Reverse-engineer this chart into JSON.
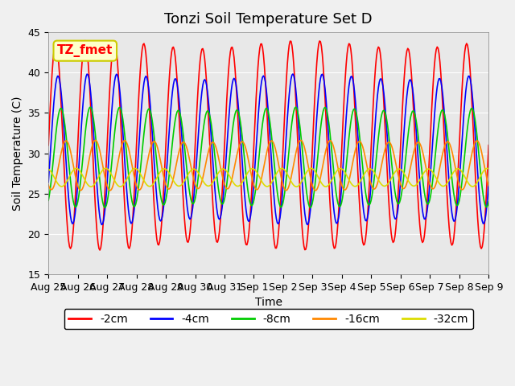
{
  "title": "Tonzi Soil Temperature Set D",
  "xlabel": "Time",
  "ylabel": "Soil Temperature (C)",
  "ylim": [
    15,
    45
  ],
  "yticks": [
    15,
    20,
    25,
    30,
    35,
    40,
    45
  ],
  "x_tick_labels": [
    "Aug 25",
    "Aug 26",
    "Aug 27",
    "Aug 28",
    "Aug 29",
    "Aug 30",
    "Aug 31",
    "Sep 1",
    "Sep 2",
    "Sep 3",
    "Sep 4",
    "Sep 5",
    "Sep 6",
    "Sep 7",
    "Sep 8",
    "Sep 9"
  ],
  "legend_label": "TZ_fmet",
  "series": [
    {
      "label": "-2cm",
      "color": "#ff0000",
      "amplitude": 12.5,
      "mean": 31.0,
      "phase_shift": 0.0
    },
    {
      "label": "-4cm",
      "color": "#0000ff",
      "amplitude": 9.0,
      "mean": 30.5,
      "phase_shift": 0.15
    },
    {
      "label": "-8cm",
      "color": "#00cc00",
      "amplitude": 6.0,
      "mean": 29.5,
      "phase_shift": 0.35
    },
    {
      "label": "-16cm",
      "color": "#ff8800",
      "amplitude": 3.0,
      "mean": 28.5,
      "phase_shift": 0.7
    },
    {
      "label": "-32cm",
      "color": "#dddd00",
      "amplitude": 1.1,
      "mean": 27.0,
      "phase_shift": 1.4
    }
  ],
  "n_points": 480,
  "days": 15,
  "plot_bg_color": "#e8e8e8",
  "fig_bg_color": "#f0f0f0",
  "legend_box_color": "#ffffcc",
  "legend_box_edge": "#cccc00",
  "title_fontsize": 13,
  "axis_label_fontsize": 10,
  "tick_fontsize": 9,
  "legend_fontsize": 10
}
